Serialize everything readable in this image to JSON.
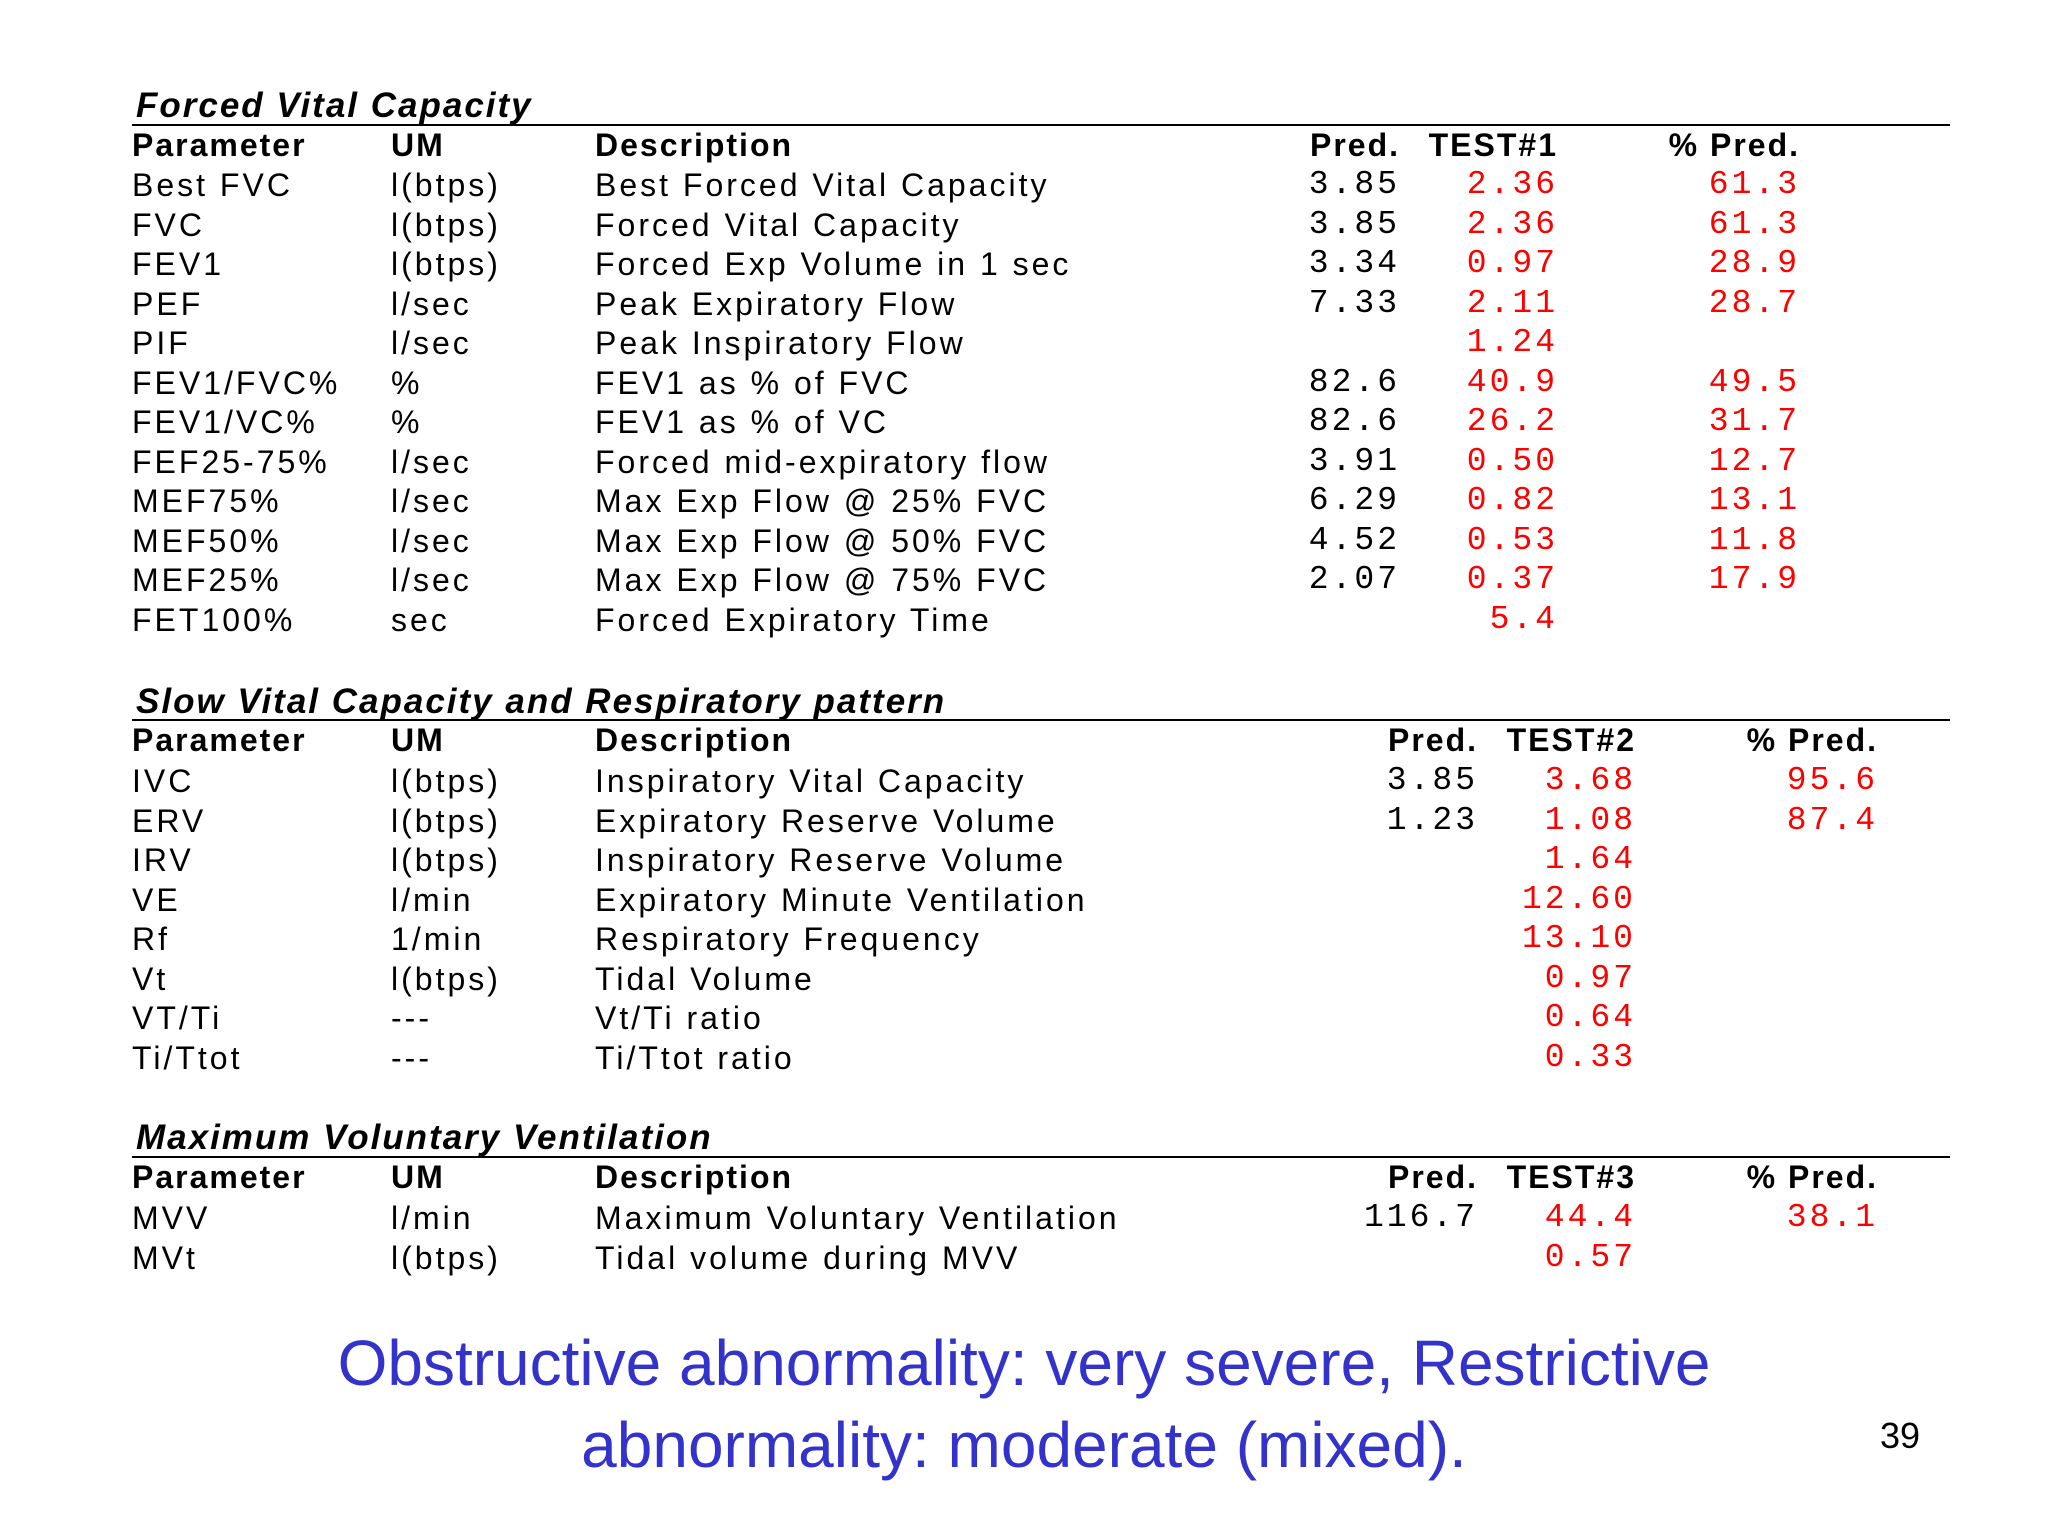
{
  "sections": [
    {
      "title": "Forced Vital Capacity",
      "headers": {
        "param": "Parameter",
        "um": "UM",
        "desc": "Description",
        "pred": "Pred.",
        "test": "TEST#1",
        "pct": "% Pred."
      },
      "rows": [
        {
          "param": "Best FVC",
          "um": "l(btps)",
          "desc": "Best Forced Vital Capacity",
          "pred": "3.85",
          "test": "2.36",
          "pct": "61.3"
        },
        {
          "param": "FVC",
          "um": "l(btps)",
          "desc": "Forced Vital Capacity",
          "pred": "3.85",
          "test": "2.36",
          "pct": "61.3"
        },
        {
          "param": "FEV1",
          "um": "l(btps)",
          "desc": "Forced Exp Volume in 1 sec",
          "pred": "3.34",
          "test": "0.97",
          "pct": "28.9"
        },
        {
          "param": "PEF",
          "um": "l/sec",
          "desc": "Peak Expiratory Flow",
          "pred": "7.33",
          "test": "2.11",
          "pct": "28.7"
        },
        {
          "param": "PIF",
          "um": "l/sec",
          "desc": "Peak Inspiratory Flow",
          "pred": "",
          "test": "1.24",
          "pct": ""
        },
        {
          "param": "FEV1/FVC%",
          "um": "%",
          "desc": "FEV1 as % of FVC",
          "pred": "82.6",
          "test": "40.9",
          "pct": "49.5"
        },
        {
          "param": "FEV1/VC%",
          "um": "%",
          "desc": "FEV1 as % of VC",
          "pred": "82.6",
          "test": "26.2",
          "pct": "31.7"
        },
        {
          "param": "FEF25-75%",
          "um": "l/sec",
          "desc": "Forced mid-expiratory flow",
          "pred": "3.91",
          "test": "0.50",
          "pct": "12.7"
        },
        {
          "param": "MEF75%",
          "um": "l/sec",
          "desc": "Max Exp Flow @ 25% FVC",
          "pred": "6.29",
          "test": "0.82",
          "pct": "13.1"
        },
        {
          "param": "MEF50%",
          "um": "l/sec",
          "desc": "Max Exp Flow @ 50% FVC",
          "pred": "4.52",
          "test": "0.53",
          "pct": "11.8"
        },
        {
          "param": "MEF25%",
          "um": "l/sec",
          "desc": "Max Exp Flow @ 75% FVC",
          "pred": "2.07",
          "test": "0.37",
          "pct": "17.9"
        },
        {
          "param": "FET100%",
          "um": "sec",
          "desc": "Forced Expiratory Time",
          "pred": "",
          "test": "5.4",
          "pct": ""
        }
      ]
    },
    {
      "title": "Slow Vital Capacity and Respiratory pattern",
      "headers": {
        "param": "Parameter",
        "um": "UM",
        "desc": "Description",
        "pred": "Pred.",
        "test": "TEST#2",
        "pct": "% Pred."
      },
      "rows": [
        {
          "param": "IVC",
          "um": "l(btps)",
          "desc": "Inspiratory Vital Capacity",
          "pred": "3.85",
          "test": "3.68",
          "pct": "95.6"
        },
        {
          "param": "ERV",
          "um": "l(btps)",
          "desc": "Expiratory Reserve Volume",
          "pred": "1.23",
          "test": "1.08",
          "pct": "87.4"
        },
        {
          "param": "IRV",
          "um": "l(btps)",
          "desc": "Inspiratory Reserve Volume",
          "pred": "",
          "test": "1.64",
          "pct": ""
        },
        {
          "param": "VE",
          "um": "l/min",
          "desc": "Expiratory Minute Ventilation",
          "pred": "",
          "test": "12.60",
          "pct": ""
        },
        {
          "param": "Rf",
          "um": "1/min",
          "desc": "Respiratory Frequency",
          "pred": "",
          "test": "13.10",
          "pct": ""
        },
        {
          "param": "Vt",
          "um": "l(btps)",
          "desc": "Tidal Volume",
          "pred": "",
          "test": "0.97",
          "pct": ""
        },
        {
          "param": "VT/Ti",
          "um": "---",
          "desc": "Vt/Ti ratio",
          "pred": "",
          "test": "0.64",
          "pct": ""
        },
        {
          "param": "Ti/Ttot",
          "um": "---",
          "desc": "Ti/Ttot ratio",
          "pred": "",
          "test": "0.33",
          "pct": ""
        }
      ]
    },
    {
      "title": "Maximum Voluntary Ventilation",
      "headers": {
        "param": "Parameter",
        "um": "UM",
        "desc": "Description",
        "pred": "Pred.",
        "test": "TEST#3",
        "pct": "% Pred."
      },
      "rows": [
        {
          "param": "MVV",
          "um": "l/min",
          "desc": "Maximum Voluntary Ventilation",
          "pred": "116.7",
          "test": "44.4",
          "pct": "38.1"
        },
        {
          "param": "MVt",
          "um": "l(btps)",
          "desc": "Tidal volume during MVV",
          "pred": "",
          "test": "0.57",
          "pct": ""
        }
      ]
    }
  ],
  "caption": {
    "line1": "Obstructive abnormality: very severe, Restrictive",
    "line2": "abnormality: moderate (mixed)."
  },
  "page_number": "39",
  "colors": {
    "test_values": "#ff0000",
    "caption": "#3333cc"
  }
}
